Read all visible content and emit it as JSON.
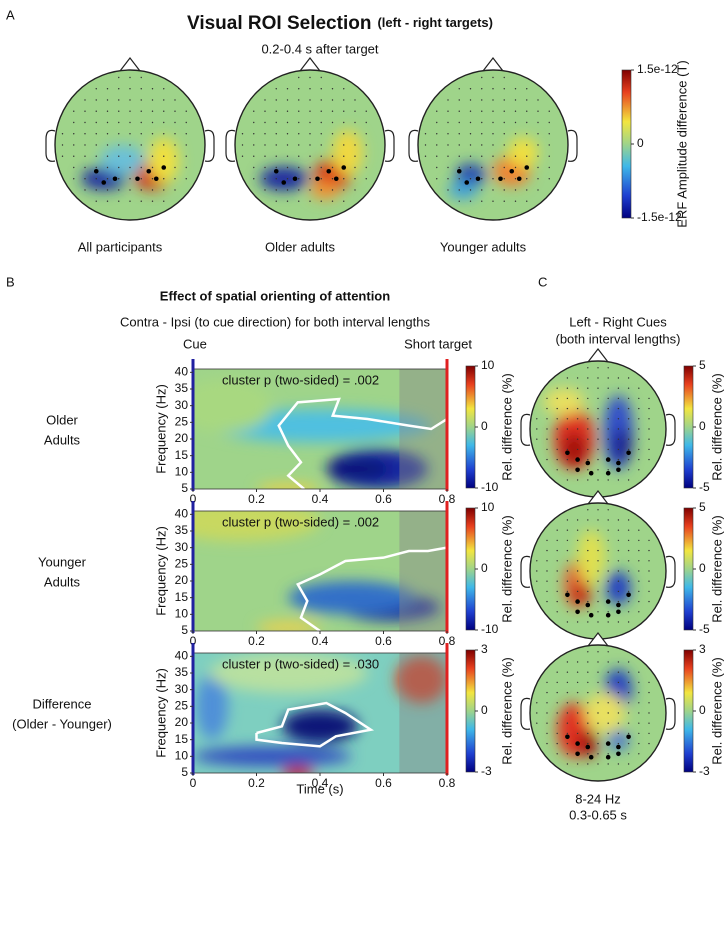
{
  "panel_a": {
    "label": "A",
    "title": "Visual ROI Selection",
    "title_note": "(left - right targets)",
    "subtitle": "0.2-0.4 s after target",
    "topoplots": [
      "All participants",
      "Older adults",
      "Younger adults"
    ],
    "colorbar": {
      "label": "ERF Amplitude difference (T)",
      "lim": [
        -1.5e-12,
        1.5e-12
      ],
      "ticks": [
        {
          "value": -1.5e-12,
          "label": "-1.5e-12"
        },
        0,
        {
          "value": 1.5e-12,
          "label": "1.5e-12"
        }
      ]
    }
  },
  "panel_b": {
    "label": "B",
    "title": "Effect of spatial orienting of attention",
    "subtitle": "Contra - Ipsi (to cue direction) for both interval lengths",
    "cue_label": "Cue",
    "target_label": "Short target",
    "x_label": "Time (s)",
    "y_label": "Frequency (Hz)",
    "colorbar_label": "Rel. difference (%)",
    "xlim": [
      0,
      0.8
    ],
    "xticks": [
      0,
      0.2,
      0.4,
      0.6,
      0.8
    ],
    "ylim": [
      5,
      41
    ],
    "yticks": [
      5,
      10,
      15,
      20,
      25,
      30,
      35,
      40
    ],
    "rows": [
      {
        "name": [
          "Older",
          "Adults"
        ],
        "cluster": "cluster p (two-sided) = .002",
        "clim": [
          -10,
          10
        ],
        "cticks": [
          -10,
          0,
          10
        ]
      },
      {
        "name": [
          "Younger",
          "Adults"
        ],
        "cluster": "cluster p (two-sided) = .002",
        "clim": [
          -10,
          10
        ],
        "cticks": [
          -10,
          0,
          10
        ]
      },
      {
        "name": [
          "Difference",
          "(Older - Younger)"
        ],
        "cluster": "cluster p (two-sided) = .030",
        "clim": [
          -3,
          3
        ],
        "cticks": [
          -3,
          0,
          3
        ]
      }
    ]
  },
  "panel_c": {
    "label": "C",
    "title": "Left - Right Cues",
    "subtitle": "(both interval lengths)",
    "colorbar_label": "Rel. difference (%)",
    "rows": [
      {
        "clim": [
          -5,
          5
        ],
        "cticks": [
          -5,
          0,
          5
        ]
      },
      {
        "clim": [
          -5,
          5
        ],
        "cticks": [
          -5,
          0,
          5
        ]
      },
      {
        "clim": [
          -3,
          3
        ],
        "cticks": [
          -3,
          0,
          3
        ]
      }
    ],
    "note": [
      "8-24 Hz",
      "0.3-0.65 s"
    ]
  }
}
